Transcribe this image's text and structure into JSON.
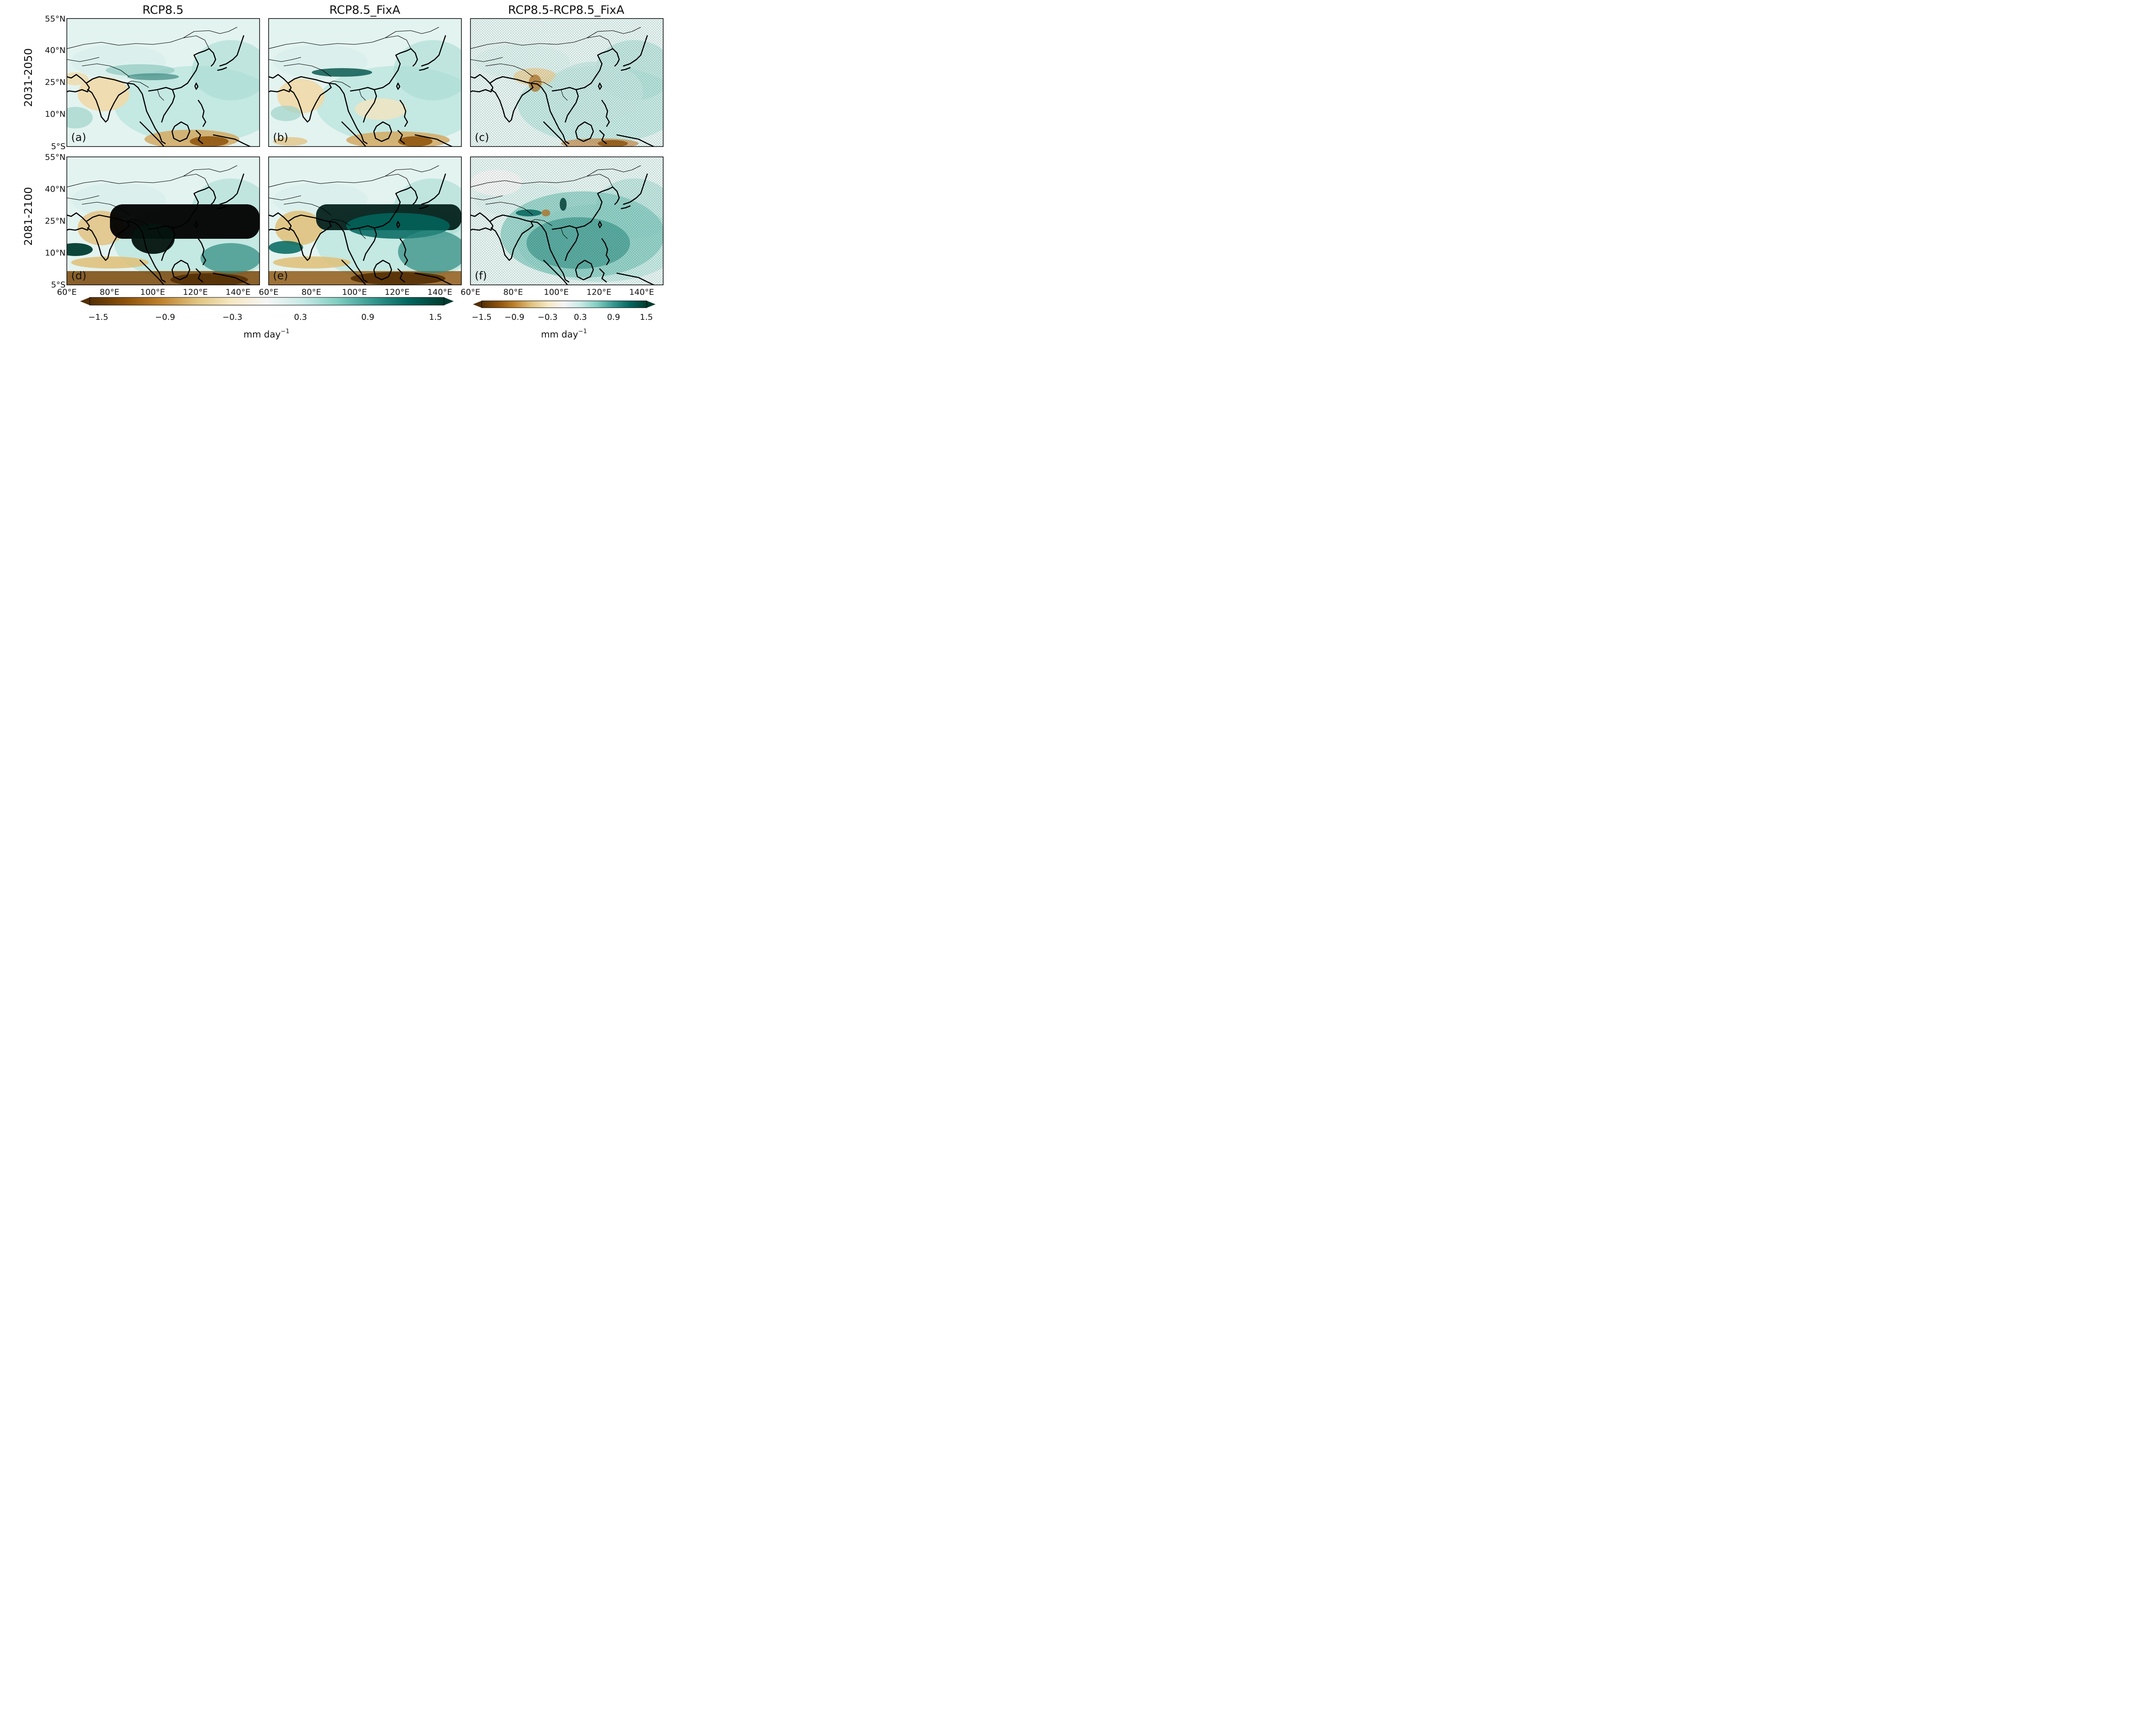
{
  "figure": {
    "column_titles": [
      "RCP8.5",
      "RCP8.5_FixA",
      "RCP8.5-RCP8.5_FixA"
    ],
    "row_titles": [
      "2031-2050",
      "2081-2100"
    ],
    "panels": [
      {
        "label": "(a)",
        "period": "2031-2050",
        "experiment": "RCP8.5"
      },
      {
        "label": "(b)",
        "period": "2031-2050",
        "experiment": "RCP8.5_FixA"
      },
      {
        "label": "(c)",
        "period": "2031-2050",
        "experiment": "RCP8.5-RCP8.5_FixA"
      },
      {
        "label": "(d)",
        "period": "2081-2100",
        "experiment": "RCP8.5"
      },
      {
        "label": "(e)",
        "period": "2081-2100",
        "experiment": "RCP8.5_FixA"
      },
      {
        "label": "(f)",
        "period": "2081-2100",
        "experiment": "RCP8.5-RCP8.5_FixA"
      }
    ],
    "lat_ticks": [
      "55°N",
      "40°N",
      "25°N",
      "10°N",
      "5°S"
    ],
    "lon_ticks_left": [
      "60°E",
      "80°E",
      "100°E",
      "120°E",
      "140°E"
    ],
    "lon_ticks_right": [
      "60°E",
      "80°E",
      "100°E",
      "120°E",
      "140°E"
    ],
    "extent": {
      "lon_min": 60,
      "lon_max": 150,
      "lat_min": -5,
      "lat_max": 55
    },
    "colorbar_main": {
      "ticks": [
        "−1.5",
        "−0.9",
        "−0.3",
        "0.3",
        "0.9",
        "1.5"
      ],
      "unit": "mm day",
      "unit_exponent": "−1",
      "range": [
        -1.5,
        1.5
      ]
    },
    "colorbar_diff": {
      "ticks": [
        "−1.5",
        "−0.9",
        "−0.3",
        "0.3",
        "0.9",
        "1.5"
      ],
      "unit": "mm day",
      "unit_exponent": "−1",
      "range": [
        -1.5,
        1.5
      ]
    },
    "colormap": {
      "name": "BrBG",
      "stops": [
        "#543005",
        "#8c510a",
        "#bf812d",
        "#dfc27d",
        "#f6e8c3",
        "#f5f5f5",
        "#c7eae5",
        "#80cdc1",
        "#35978f",
        "#01665e",
        "#003c30"
      ],
      "negative_label": "drier (brown)",
      "positive_label": "wetter (teal)"
    }
  }
}
